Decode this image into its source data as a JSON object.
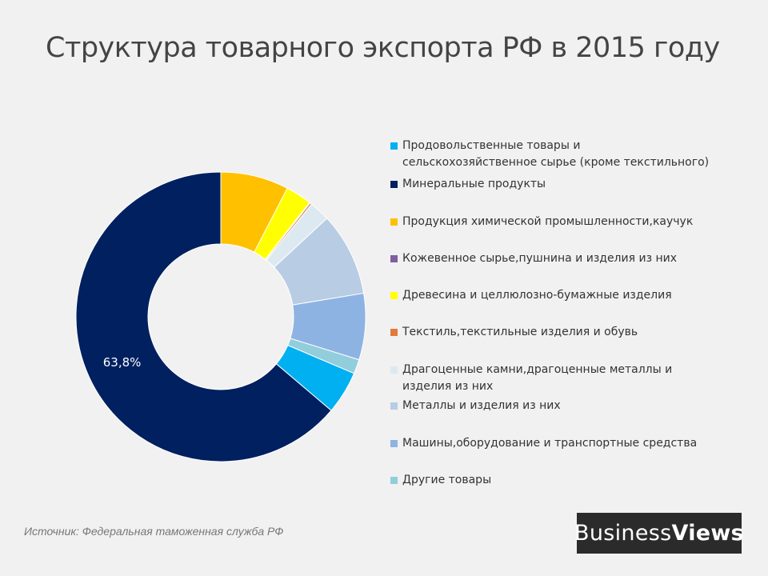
{
  "title": "Структура товарного экспорта РФ в 2015 году",
  "source": "Источник: Федеральная таможенная служба РФ",
  "logo": {
    "part1": "Business",
    "part2": "Views"
  },
  "colors": {
    "background": "#f1f1f1",
    "food": "#00b0f0",
    "minerals": "#002060",
    "chemicals": "#ffc000",
    "leather": "#7f5fa0",
    "wood": "#ffff00",
    "textile": "#e07b39",
    "precious": "#dde9f1",
    "metals": "#b8cce4",
    "machinery": "#8db3e2",
    "other": "#92cddc"
  },
  "chart_data": {
    "type": "pie",
    "donut": true,
    "start_angle_deg": 0,
    "direction": "clockwise",
    "slices": [
      {
        "key": "chemicals",
        "label": "Продукция химической промышленности,каучук",
        "value": 7.6
      },
      {
        "key": "wood",
        "label": "Древесина и целлюлозно-бумажные изделия",
        "value": 2.9
      },
      {
        "key": "leather",
        "label": "Кожевенное сырье,пушнина и изделия из них",
        "value": 0.1
      },
      {
        "key": "textile",
        "label": "Текстиль,текстильные изделия и обувь",
        "value": 0.2
      },
      {
        "key": "precious",
        "label": "Драгоценные камни,драгоценные металлы и изделия из них",
        "value": 2.3
      },
      {
        "key": "metals",
        "label": "Металлы и изделия из них",
        "value": 9.3
      },
      {
        "key": "machinery",
        "label": "Машины,оборудование и транспортные средства",
        "value": 7.4
      },
      {
        "key": "other",
        "label": "Другие товары",
        "value": 1.6
      },
      {
        "key": "food",
        "label": "Продовольственные товары и сельскохозяйственное сырье (кроме текстильного)",
        "value": 4.8
      },
      {
        "key": "minerals",
        "label": "Минеральные продукты",
        "value": 63.8
      }
    ],
    "data_labels": [
      {
        "key": "minerals",
        "text": "63,8%"
      }
    ],
    "legend": [
      {
        "key": "food",
        "label": "Продовольственные товары и сельскохозяйственное сырье (кроме текстильного)"
      },
      {
        "key": "minerals",
        "label": "Минеральные продукты"
      },
      {
        "key": "chemicals",
        "label": "Продукция химической промышленности,каучук"
      },
      {
        "key": "leather",
        "label": "Кожевенное сырье,пушнина и изделия из них"
      },
      {
        "key": "wood",
        "label": "Древесина и целлюлозно-бумажные изделия"
      },
      {
        "key": "textile",
        "label": "Текстиль,текстильные изделия и обувь"
      },
      {
        "key": "precious",
        "label": "Драгоценные камни,драгоценные металлы и изделия из них"
      },
      {
        "key": "metals",
        "label": "Металлы и изделия из них"
      },
      {
        "key": "machinery",
        "label": "Машины,оборудование и транспортные средства"
      },
      {
        "key": "other",
        "label": "Другие товары"
      }
    ],
    "legend_position": "right"
  }
}
